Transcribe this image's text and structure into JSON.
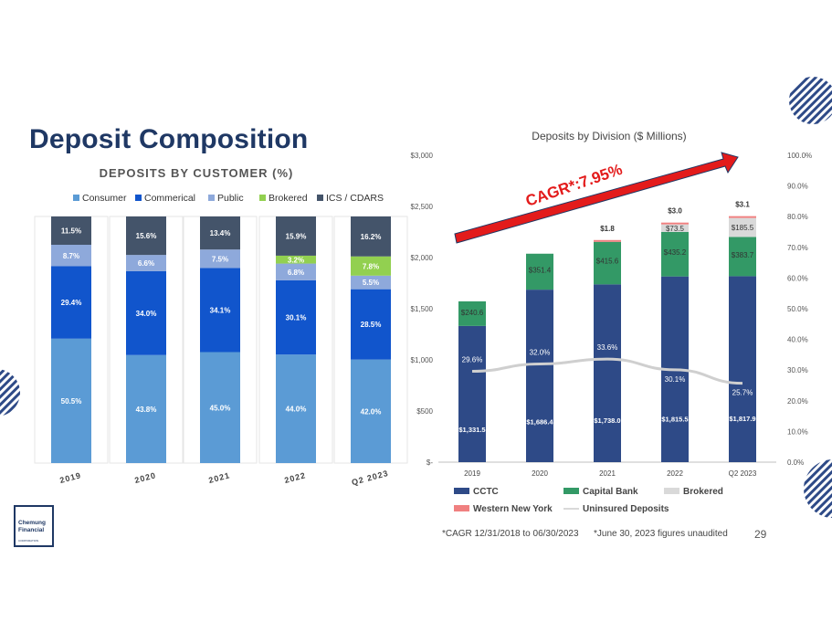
{
  "page": {
    "title": "Deposit Composition",
    "page_number": "29",
    "footnote_cagr": "*CAGR 12/31/2018 to 06/30/2023",
    "footnote_unaudited": "*June 30, 2023 figures unaudited",
    "logo_line1": "Chemung",
    "logo_line2": "Financial",
    "logo_sub": "CORPORATION"
  },
  "colors": {
    "consumer": "#5b9bd5",
    "commercial": "#1155cc",
    "public": "#8ea9db",
    "brokered_left": "#92d050",
    "ics": "#44546a",
    "cctc": "#2e4a87",
    "capital_bank": "#339966",
    "brokered_right": "#d9d9d9",
    "western_ny": "#f08080",
    "uninsured": "#d9d9d9",
    "arrow": "#e31b1b",
    "title": "#1f3864"
  },
  "chart_data": [
    {
      "type": "bar",
      "stacked": true,
      "title": "DEPOSITS BY CUSTOMER (%)",
      "categories": [
        "2019",
        "2020",
        "2021",
        "2022",
        "Q2 2023"
      ],
      "series": [
        {
          "name": "Consumer",
          "color_key": "consumer",
          "values": [
            50.5,
            43.8,
            45.0,
            44.0,
            42.0
          ],
          "labels": [
            "50.5%",
            "43.8%",
            "45.0%",
            "44.0%",
            "42.0%"
          ]
        },
        {
          "name": "Commerical",
          "color_key": "commercial",
          "values": [
            29.4,
            34.0,
            34.1,
            30.1,
            28.5
          ],
          "labels": [
            "29.4%",
            "34.0%",
            "34.1%",
            "30.1%",
            "28.5%"
          ]
        },
        {
          "name": "Public",
          "color_key": "public",
          "values": [
            8.7,
            6.6,
            7.5,
            6.8,
            5.5
          ],
          "labels": [
            "8.7%",
            "6.6%",
            "7.5%",
            "6.8%",
            "5.5%"
          ]
        },
        {
          "name": "Brokered",
          "color_key": "brokered_left",
          "values": [
            0,
            0,
            0,
            3.2,
            7.8
          ],
          "labels": [
            "",
            "",
            "",
            "3.2%",
            "7.8%"
          ]
        },
        {
          "name": "ICS / CDARS",
          "color_key": "ics",
          "values": [
            11.5,
            15.6,
            13.4,
            15.9,
            16.2
          ],
          "labels": [
            "11.5%",
            "15.6%",
            "13.4%",
            "15.9%",
            "16.2%"
          ]
        }
      ],
      "ylim": [
        0,
        100
      ],
      "legend": "top"
    },
    {
      "type": "bar",
      "stacked": true,
      "title": "Deposits by Division ($ Millions)",
      "categories": [
        "2019",
        "2020",
        "2021",
        "2022",
        "Q2 2023"
      ],
      "y_ticks": [
        "$-",
        "$500",
        "$1,000",
        "$1,500",
        "$2,000",
        "$2,500",
        "$3,000"
      ],
      "y2_ticks": [
        "0.0%",
        "10.0%",
        "20.0%",
        "30.0%",
        "40.0%",
        "50.0%",
        "60.0%",
        "70.0%",
        "80.0%",
        "90.0%",
        "100.0%"
      ],
      "ylim": [
        0,
        3000
      ],
      "y2lim": [
        0,
        100
      ],
      "series": [
        {
          "name": "CCTC",
          "color_key": "cctc",
          "values": [
            1331.5,
            1686.4,
            1738.0,
            1815.5,
            1817.9
          ],
          "labels": [
            "$1,331.5",
            "$1,686.4",
            "$1,738.0",
            "$1,815.5",
            "$1,817.9"
          ]
        },
        {
          "name": "Capital Bank",
          "color_key": "capital_bank",
          "values": [
            240.6,
            351.4,
            415.6,
            435.2,
            383.7
          ],
          "labels": [
            "$240.6",
            "$351.4",
            "$415.6",
            "$435.2",
            "$383.7"
          ]
        },
        {
          "name": "Brokered",
          "color_key": "brokered_right",
          "values": [
            0,
            0,
            0,
            73.5,
            185.5
          ],
          "labels": [
            "",
            "",
            "",
            "$73.5",
            "$185.5"
          ]
        },
        {
          "name": "Western New York",
          "color_key": "western_ny",
          "values": [
            0,
            0,
            1.8,
            3.0,
            3.1
          ],
          "labels": [
            "",
            "",
            "$1.8",
            "$3.0",
            "$3.1"
          ]
        }
      ],
      "line_series": {
        "name": "Uninsured Deposits",
        "color_key": "uninsured",
        "axis": "secondary",
        "values": [
          29.6,
          32.0,
          33.6,
          30.1,
          25.7
        ],
        "labels": [
          "29.6%",
          "32.0%",
          "33.6%",
          "30.1%",
          "25.7%"
        ]
      },
      "annotation": "CAGR*:7.95%",
      "legend": "bottom"
    }
  ]
}
